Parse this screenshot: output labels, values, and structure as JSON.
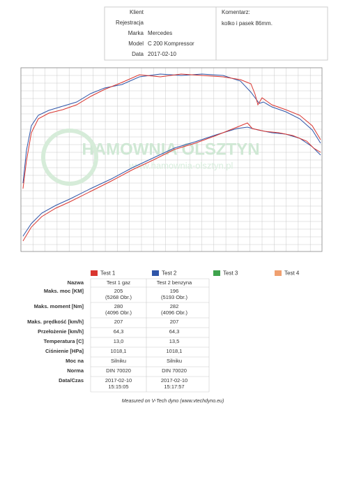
{
  "header": {
    "fields": [
      {
        "label": "Klient"
      },
      {
        "label": "Rejestracja"
      },
      {
        "label": "Marka",
        "value": "Mercedes"
      },
      {
        "label": "Model",
        "value": "C 200 Kompressor"
      },
      {
        "label": "Data",
        "value": "2017-02-10"
      }
    ],
    "comment_label": "Komentarz:",
    "comment": "kolko i pasek 86mm."
  },
  "watermark": {
    "title": "HAMOWNIA OLSZTYN",
    "url": "www.hamownia-olsztyn.pl"
  },
  "legend": [
    {
      "name": "Test 1",
      "color": "#d9352f"
    },
    {
      "name": "Test 2",
      "color": "#2f55a8"
    },
    {
      "name": "Test 3",
      "color": "#3fa34d"
    },
    {
      "name": "Test 4",
      "color": "#f0a070"
    }
  ],
  "table": {
    "rows": [
      [
        "Nazwa",
        [
          "Test 1 gaz"
        ],
        [
          "Test 2 benzyna"
        ]
      ],
      [
        "Maks. moc [KM]",
        [
          "205",
          "(5268 Obr.)"
        ],
        [
          "196",
          "(5193 Obr.)"
        ]
      ],
      [
        "Maks. moment [Nm]",
        [
          "280",
          "(4096 Obr.)"
        ],
        [
          "282",
          "(4096 Obr.)"
        ]
      ],
      [
        "Maks. prędkość [km/h]",
        [
          "207"
        ],
        [
          "207"
        ]
      ],
      [
        "Przełożenie [km/h]",
        [
          "64,3"
        ],
        [
          "64,3"
        ]
      ],
      [
        "Temperatura [C]",
        [
          "13,0"
        ],
        [
          "13,5"
        ]
      ],
      [
        "Ciśnienie [HPa]",
        [
          "1018,1"
        ],
        [
          "1018,1"
        ]
      ],
      [
        "Moc na",
        [
          "Silniku"
        ],
        [
          "Silniku"
        ]
      ],
      [
        "Norma",
        [
          "DIN 70020"
        ],
        [
          "DIN 70020"
        ]
      ],
      [
        "Data/Czas",
        [
          "2017-02-10",
          "15:15:05"
        ],
        [
          "2017-02-10",
          "15:17:57"
        ]
      ]
    ]
  },
  "footer": "Measured on V-Tech dyno (www.vtechdyno.eu)"
}
